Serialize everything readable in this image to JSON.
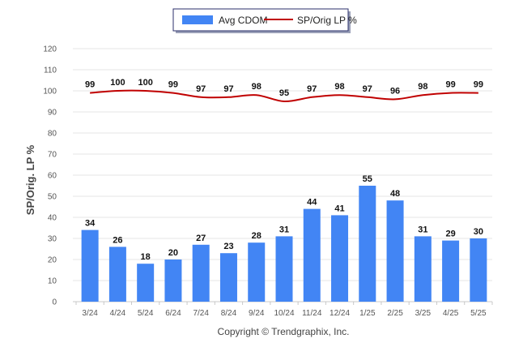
{
  "chart_data": {
    "type": "bar",
    "ylabel": "SP/Orig. LP %",
    "ylim": [
      0,
      120
    ],
    "yticks": [
      0,
      10,
      20,
      30,
      40,
      50,
      60,
      70,
      80,
      90,
      100,
      110,
      120
    ],
    "grid": true,
    "legend_position": "top-center",
    "categories": [
      "3/24",
      "4/24",
      "5/24",
      "6/24",
      "7/24",
      "8/24",
      "9/24",
      "10/24",
      "11/24",
      "12/24",
      "1/25",
      "2/25",
      "3/25",
      "4/25",
      "5/25"
    ],
    "series": [
      {
        "name": "Avg CDOM",
        "type": "bar",
        "color": "#4285f4",
        "values": [
          34,
          26,
          18,
          20,
          27,
          23,
          28,
          31,
          44,
          41,
          55,
          48,
          31,
          29,
          30
        ]
      },
      {
        "name": "SP/Orig LP %",
        "type": "line",
        "color": "#c00000",
        "values": [
          99,
          100,
          100,
          99,
          97,
          97,
          98,
          95,
          97,
          98,
          97,
          96,
          98,
          99,
          99
        ]
      }
    ]
  },
  "footer": {
    "copyright": "Copyright © Trendgraphix, Inc."
  }
}
